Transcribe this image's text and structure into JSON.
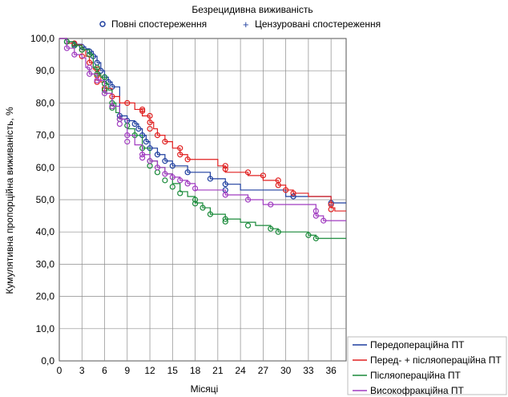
{
  "chart_data": {
    "type": "line",
    "title": "Безрецидивна виживаність",
    "xlabel": "Місяці",
    "ylabel": "Кумулятивна пропорційна виживаність, %",
    "xlim": [
      0,
      38
    ],
    "ylim": [
      0,
      100
    ],
    "xticks": [
      0,
      3,
      6,
      9,
      12,
      15,
      18,
      21,
      24,
      27,
      30,
      33,
      36
    ],
    "yticks": [
      "0,0",
      "10,0",
      "20,0",
      "30,0",
      "40,0",
      "50,0",
      "60,0",
      "70,0",
      "80,0",
      "90,0",
      "100,0"
    ],
    "grid": true,
    "legend_markers": [
      {
        "label": "Повні спостереження",
        "symbol": "o",
        "color": "#1f3f9f"
      },
      {
        "label": "Цензуровані спостереження",
        "symbol": "+",
        "color": "#1f3f9f"
      }
    ],
    "series": [
      {
        "name": "Передопераційна ПТ",
        "color": "#1f3f9f",
        "steps": [
          [
            0,
            100
          ],
          [
            1,
            99
          ],
          [
            2,
            98.2
          ],
          [
            3,
            97.4
          ],
          [
            3.5,
            96.8
          ],
          [
            4,
            96
          ],
          [
            4.5,
            94.5
          ],
          [
            5,
            92.5
          ],
          [
            5.5,
            90
          ],
          [
            6,
            88
          ],
          [
            6.5,
            86.5
          ],
          [
            7,
            85
          ],
          [
            8,
            76
          ],
          [
            9,
            74.5
          ],
          [
            10,
            73.5
          ],
          [
            10.5,
            72
          ],
          [
            11,
            70
          ],
          [
            11.5,
            68
          ],
          [
            12,
            66
          ],
          [
            13,
            64
          ],
          [
            14,
            62
          ],
          [
            15,
            60.5
          ],
          [
            17,
            58.5
          ],
          [
            20,
            56.5
          ],
          [
            22,
            54.8
          ],
          [
            24,
            53
          ],
          [
            30,
            51
          ],
          [
            36,
            49
          ],
          [
            38,
            49
          ]
        ],
        "events": [
          [
            1,
            99
          ],
          [
            2,
            98.2
          ],
          [
            3,
            97.4
          ],
          [
            4,
            96
          ],
          [
            4.5,
            94.5
          ],
          [
            5,
            92.5
          ],
          [
            5.5,
            90
          ],
          [
            6,
            88
          ],
          [
            6.5,
            86.5
          ],
          [
            7,
            85
          ],
          [
            8,
            76
          ],
          [
            9,
            74.5
          ],
          [
            10,
            73.5
          ],
          [
            10.5,
            72
          ],
          [
            11,
            70
          ],
          [
            11.5,
            68
          ],
          [
            12,
            66
          ],
          [
            13,
            64
          ],
          [
            14,
            62
          ],
          [
            15,
            60.5
          ],
          [
            17,
            58.5
          ],
          [
            20,
            56.5
          ],
          [
            22,
            54.8
          ],
          [
            22,
            53
          ],
          [
            31,
            51
          ],
          [
            36,
            49
          ]
        ]
      },
      {
        "name": "Перед- + післяопераційна ПТ",
        "color": "#e02020",
        "steps": [
          [
            0,
            100
          ],
          [
            1,
            98.5
          ],
          [
            2,
            98
          ],
          [
            3,
            96.5
          ],
          [
            3.5,
            94.5
          ],
          [
            4,
            92.5
          ],
          [
            4.5,
            90.5
          ],
          [
            5,
            88.5
          ],
          [
            5.5,
            86.5
          ],
          [
            6,
            84.5
          ],
          [
            7,
            82
          ],
          [
            8,
            80
          ],
          [
            10,
            78
          ],
          [
            11,
            76
          ],
          [
            12,
            74
          ],
          [
            12.5,
            72
          ],
          [
            13,
            70
          ],
          [
            14,
            68
          ],
          [
            15,
            66
          ],
          [
            16,
            64
          ],
          [
            17,
            62.5
          ],
          [
            21,
            60.5
          ],
          [
            22,
            58.5
          ],
          [
            25,
            57.5
          ],
          [
            27,
            56
          ],
          [
            29,
            54.5
          ],
          [
            30,
            53
          ],
          [
            31,
            52
          ],
          [
            33,
            51
          ],
          [
            36,
            47.5
          ],
          [
            36.5,
            46.5
          ],
          [
            38,
            46.5
          ]
        ],
        "events": [
          [
            2,
            98.5
          ],
          [
            3,
            96.5
          ],
          [
            3,
            94.5
          ],
          [
            4,
            92.5
          ],
          [
            5,
            90.5
          ],
          [
            5,
            88.5
          ],
          [
            5,
            86.5
          ],
          [
            6,
            84.5
          ],
          [
            7,
            82
          ],
          [
            9,
            80
          ],
          [
            11,
            78
          ],
          [
            11,
            77.5
          ],
          [
            12,
            76
          ],
          [
            12,
            74
          ],
          [
            12,
            72
          ],
          [
            13,
            70
          ],
          [
            14,
            68
          ],
          [
            16,
            66
          ],
          [
            16,
            64
          ],
          [
            17,
            62.5
          ],
          [
            22,
            60.5
          ],
          [
            22,
            59.5
          ],
          [
            25,
            58.5
          ],
          [
            27,
            57.5
          ],
          [
            29,
            56
          ],
          [
            29,
            54.5
          ],
          [
            30,
            53
          ],
          [
            31,
            52
          ],
          [
            36,
            48.5
          ],
          [
            36,
            47
          ]
        ]
      },
      {
        "name": "Післяопераційна ПТ",
        "color": "#1a8a3a",
        "steps": [
          [
            0,
            100
          ],
          [
            1,
            99
          ],
          [
            2,
            97.8
          ],
          [
            3,
            96.5
          ],
          [
            4,
            95
          ],
          [
            4.5,
            91
          ],
          [
            5,
            89
          ],
          [
            5.5,
            88
          ],
          [
            6,
            86
          ],
          [
            6.5,
            84
          ],
          [
            7,
            80
          ],
          [
            7.5,
            77
          ],
          [
            8,
            75
          ],
          [
            9,
            72
          ],
          [
            10,
            70
          ],
          [
            11,
            66
          ],
          [
            12,
            62
          ],
          [
            13,
            60
          ],
          [
            14,
            58
          ],
          [
            15,
            55
          ],
          [
            16,
            52.5
          ],
          [
            17,
            51
          ],
          [
            18,
            49
          ],
          [
            19,
            47.5
          ],
          [
            20,
            45.5
          ],
          [
            22,
            44
          ],
          [
            24,
            43
          ],
          [
            26,
            42
          ],
          [
            28,
            41
          ],
          [
            29,
            40
          ],
          [
            33,
            39
          ],
          [
            34,
            38
          ],
          [
            38,
            38
          ]
        ],
        "events": [
          [
            1,
            99
          ],
          [
            2,
            97.8
          ],
          [
            3,
            96.5
          ],
          [
            4,
            95
          ],
          [
            5,
            91
          ],
          [
            5,
            89
          ],
          [
            6,
            88
          ],
          [
            6,
            86
          ],
          [
            6,
            84
          ],
          [
            7,
            80
          ],
          [
            7,
            78.5
          ],
          [
            8,
            75
          ],
          [
            9,
            73
          ],
          [
            10,
            70
          ],
          [
            11,
            66
          ],
          [
            12,
            62
          ],
          [
            12,
            60.5
          ],
          [
            13,
            58.5
          ],
          [
            14,
            56
          ],
          [
            15,
            54
          ],
          [
            16,
            52
          ],
          [
            18,
            50
          ],
          [
            18,
            48.8
          ],
          [
            19,
            47.5
          ],
          [
            20,
            45.5
          ],
          [
            22,
            44
          ],
          [
            22,
            43.2
          ],
          [
            25,
            42
          ],
          [
            28,
            41
          ],
          [
            29,
            40
          ],
          [
            33,
            39
          ],
          [
            34,
            38
          ]
        ]
      },
      {
        "name": "Високофракційна ПТ",
        "color": "#a03cc0",
        "steps": [
          [
            0,
            100
          ],
          [
            1,
            97
          ],
          [
            2,
            95
          ],
          [
            3,
            94
          ],
          [
            3.5,
            91
          ],
          [
            4,
            89
          ],
          [
            5,
            87
          ],
          [
            6,
            83
          ],
          [
            7,
            79
          ],
          [
            8,
            75
          ],
          [
            9,
            70
          ],
          [
            10,
            67
          ],
          [
            11,
            64
          ],
          [
            12,
            62
          ],
          [
            13,
            60
          ],
          [
            14,
            58
          ],
          [
            15,
            57
          ],
          [
            16,
            56
          ],
          [
            17,
            55
          ],
          [
            18,
            53
          ],
          [
            22,
            51.5
          ],
          [
            25,
            50
          ],
          [
            27,
            48.5
          ],
          [
            34,
            45
          ],
          [
            35,
            43.5
          ],
          [
            38,
            43.5
          ]
        ],
        "events": [
          [
            1,
            97
          ],
          [
            2,
            95
          ],
          [
            4,
            91
          ],
          [
            4,
            89
          ],
          [
            5,
            87
          ],
          [
            6,
            83
          ],
          [
            7,
            79
          ],
          [
            8,
            75
          ],
          [
            8,
            73.5
          ],
          [
            9,
            70
          ],
          [
            9,
            68
          ],
          [
            11,
            64
          ],
          [
            11,
            63
          ],
          [
            12,
            62
          ],
          [
            13,
            60
          ],
          [
            14,
            58
          ],
          [
            15,
            57
          ],
          [
            16,
            56
          ],
          [
            17,
            55
          ],
          [
            18,
            53.5
          ],
          [
            22,
            51.5
          ],
          [
            25,
            50
          ],
          [
            28,
            48.5
          ],
          [
            34,
            46.5
          ],
          [
            34,
            45
          ],
          [
            35,
            43.5
          ]
        ]
      }
    ]
  }
}
